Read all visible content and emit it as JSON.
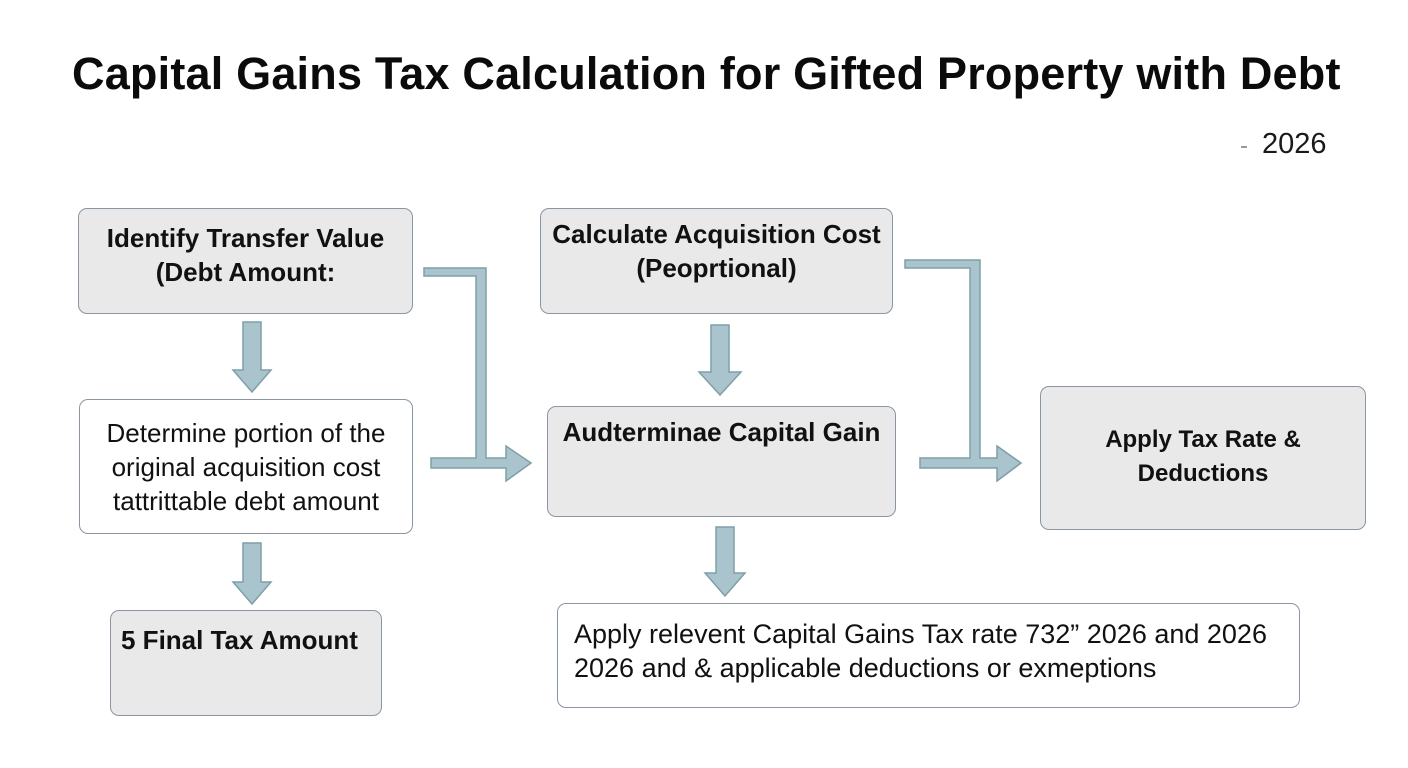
{
  "title": "Capital Gains Tax Calculation for Gifted Property with Debt",
  "year": "2026",
  "colors": {
    "box_fill": "#e9e9ea",
    "box_border": "#8a96a2",
    "arrow_fill": "#a9c4cc",
    "arrow_stroke": "#7f9ea8",
    "text": "#111111"
  },
  "nodes": {
    "identify": "Identify Transfer Value\n(Debt Amount:",
    "determine_portion": "Determine portion of the\noriginal acquisition cost\ntattrittable debt amount",
    "final_tax": "5 Final Tax Amount",
    "acquisition_cost": "Calculate Acquisition Cost\n(Peoprtional)",
    "capital_gain": "Audterminae Capital Gain",
    "apply_tax": "Apply Tax Rate & Deductions",
    "apply_relevant": "Apply relevent Capital Gains  Tax rate 732” 2026 and 2026\n2026 and & applicable deductions or exmeptions"
  }
}
